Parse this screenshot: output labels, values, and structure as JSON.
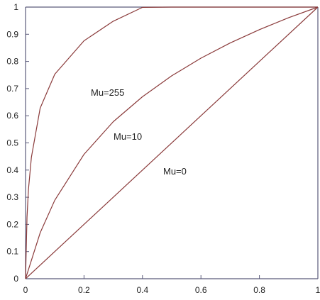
{
  "chart_data": {
    "type": "line",
    "title": "",
    "xlabel": "",
    "ylabel": "",
    "xlim": [
      0,
      1
    ],
    "ylim": [
      0,
      1
    ],
    "grid": false,
    "x_ticks": [
      "0",
      "0.2",
      "0.4",
      "0.6",
      "0.8",
      "1"
    ],
    "y_ticks": [
      "0",
      "0.1",
      "0.2",
      "0.3",
      "0.4",
      "0.5",
      "0.6",
      "0.7",
      "0.8",
      "0.9",
      "1"
    ],
    "series": [
      {
        "name": "Mu=255",
        "color": "#8a3a3a",
        "x": [
          0,
          0.005,
          0.01,
          0.02,
          0.05,
          0.1,
          0.2,
          0.3,
          0.4,
          0.5,
          0.6,
          0.7,
          0.8,
          0.9,
          1.0
        ],
        "y": [
          0,
          0.227,
          0.329,
          0.447,
          0.628,
          0.753,
          0.876,
          0.948,
          0.999,
          1.0,
          1.0,
          1.0,
          1.0,
          1.0,
          1.0
        ]
      },
      {
        "name": "Mu=10",
        "color": "#8a3a3a",
        "x": [
          0,
          0.05,
          0.1,
          0.2,
          0.3,
          0.4,
          0.5,
          0.6,
          0.7,
          0.8,
          0.9,
          1.0
        ],
        "y": [
          0,
          0.169,
          0.289,
          0.458,
          0.578,
          0.67,
          0.747,
          0.812,
          0.868,
          0.917,
          0.961,
          1.0
        ]
      },
      {
        "name": "Mu=0",
        "color": "#8a3a3a",
        "x": [
          0,
          1
        ],
        "y": [
          0,
          1
        ]
      }
    ],
    "annotations": [
      "Mu=255",
      "Mu=10",
      "Mu=0"
    ]
  }
}
